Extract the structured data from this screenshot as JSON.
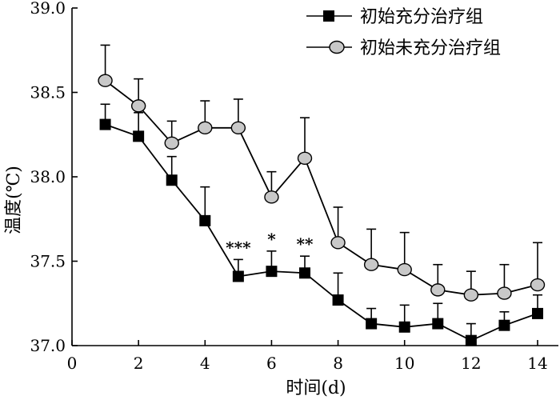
{
  "chart_data": {
    "type": "line",
    "xlabel": "时间(d)",
    "ylabel": "温度(℃)",
    "xlim": [
      0,
      15
    ],
    "ylim": [
      37.0,
      39.0
    ],
    "x_ticks": [
      0,
      2,
      4,
      6,
      8,
      10,
      12,
      14
    ],
    "y_ticks": [
      "37.0",
      "37.5",
      "38.0",
      "38.5",
      "39.0"
    ],
    "legend_position": "top-right",
    "grid": false,
    "x": [
      1,
      2,
      3,
      4,
      5,
      6,
      7,
      8,
      9,
      10,
      11,
      12,
      13,
      14
    ],
    "series": [
      {
        "name": "初始充分治疗组",
        "marker": "square",
        "color": "#000000",
        "values": [
          38.31,
          38.24,
          37.98,
          37.74,
          37.41,
          37.44,
          37.43,
          37.27,
          37.13,
          37.11,
          37.13,
          37.03,
          37.12,
          37.19
        ],
        "errors": [
          0.12,
          0.14,
          0.14,
          0.2,
          0.1,
          0.12,
          0.1,
          0.16,
          0.09,
          0.13,
          0.12,
          0.1,
          0.08,
          0.11
        ]
      },
      {
        "name": "初始未充分治疗组",
        "marker": "circle",
        "color": "#c8c8c8",
        "values": [
          38.57,
          38.42,
          38.2,
          38.29,
          38.29,
          37.88,
          38.11,
          37.61,
          37.48,
          37.45,
          37.33,
          37.3,
          37.31,
          37.36
        ],
        "errors": [
          0.21,
          0.16,
          0.13,
          0.16,
          0.17,
          0.15,
          0.24,
          0.21,
          0.21,
          0.22,
          0.15,
          0.14,
          0.17,
          0.25
        ]
      }
    ],
    "annotations": [
      {
        "x": 5,
        "text": "***"
      },
      {
        "x": 6,
        "text": "*"
      },
      {
        "x": 7,
        "text": "**"
      }
    ]
  }
}
